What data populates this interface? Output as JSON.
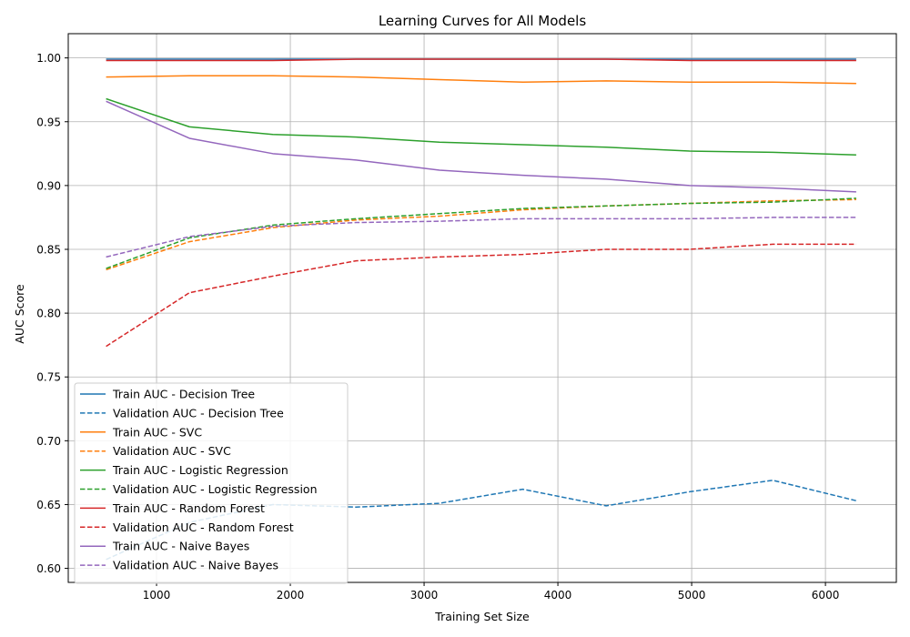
{
  "chart_data": {
    "type": "line",
    "title": "Learning Curves for All Models",
    "xlabel": "Training Set Size",
    "ylabel": "AUC Score",
    "xlim": [
      340,
      6530
    ],
    "ylim": [
      0.589,
      1.019
    ],
    "xticks": [
      1000,
      2000,
      3000,
      4000,
      5000,
      6000
    ],
    "xtick_labels": [
      "1000",
      "2000",
      "3000",
      "4000",
      "5000",
      "6000"
    ],
    "yticks": [
      0.6,
      0.65,
      0.7,
      0.75,
      0.8,
      0.85,
      0.9,
      0.95,
      1.0
    ],
    "ytick_labels": [
      "0.60",
      "0.65",
      "0.70",
      "0.75",
      "0.80",
      "0.85",
      "0.90",
      "0.95",
      "1.00"
    ],
    "grid": true,
    "legend_position": "lower-left",
    "x": [
      623,
      1246,
      1869,
      2492,
      3115,
      3738,
      4361,
      4984,
      5607,
      6230
    ],
    "series": [
      {
        "name": "Train AUC - Decision Tree",
        "color": "#1f77b4",
        "style": "solid",
        "values": [
          0.999,
          0.999,
          0.999,
          0.999,
          0.999,
          0.999,
          0.999,
          0.999,
          0.999,
          0.999
        ]
      },
      {
        "name": "Validation AUC - Decision Tree",
        "color": "#1f77b4",
        "style": "dashed",
        "values": [
          0.607,
          0.636,
          0.65,
          0.648,
          0.651,
          0.662,
          0.649,
          0.66,
          0.669,
          0.653
        ]
      },
      {
        "name": "Train AUC - SVC",
        "color": "#ff7f0e",
        "style": "solid",
        "values": [
          0.985,
          0.986,
          0.986,
          0.985,
          0.983,
          0.981,
          0.982,
          0.981,
          0.981,
          0.98
        ]
      },
      {
        "name": "Validation AUC - SVC",
        "color": "#ff7f0e",
        "style": "dashed",
        "values": [
          0.834,
          0.856,
          0.867,
          0.873,
          0.876,
          0.881,
          0.884,
          0.886,
          0.888,
          0.889
        ]
      },
      {
        "name": "Train AUC - Logistic Regression",
        "color": "#2ca02c",
        "style": "solid",
        "values": [
          0.968,
          0.946,
          0.94,
          0.938,
          0.934,
          0.932,
          0.93,
          0.927,
          0.926,
          0.924
        ]
      },
      {
        "name": "Validation AUC - Logistic Regression",
        "color": "#2ca02c",
        "style": "dashed",
        "values": [
          0.835,
          0.859,
          0.869,
          0.874,
          0.878,
          0.882,
          0.884,
          0.886,
          0.887,
          0.89
        ]
      },
      {
        "name": "Train AUC - Random Forest",
        "color": "#d62728",
        "style": "solid",
        "values": [
          0.998,
          0.998,
          0.998,
          0.999,
          0.999,
          0.999,
          0.999,
          0.998,
          0.998,
          0.998
        ]
      },
      {
        "name": "Validation AUC - Random Forest",
        "color": "#d62728",
        "style": "dashed",
        "values": [
          0.774,
          0.816,
          0.829,
          0.841,
          0.844,
          0.846,
          0.85,
          0.85,
          0.854,
          0.854
        ]
      },
      {
        "name": "Train AUC - Naive Bayes",
        "color": "#9467bd",
        "style": "solid",
        "values": [
          0.966,
          0.937,
          0.925,
          0.92,
          0.912,
          0.908,
          0.905,
          0.9,
          0.898,
          0.895
        ]
      },
      {
        "name": "Validation AUC - Naive Bayes",
        "color": "#9467bd",
        "style": "dashed",
        "values": [
          0.844,
          0.86,
          0.868,
          0.871,
          0.872,
          0.874,
          0.874,
          0.874,
          0.875,
          0.875
        ]
      }
    ]
  }
}
